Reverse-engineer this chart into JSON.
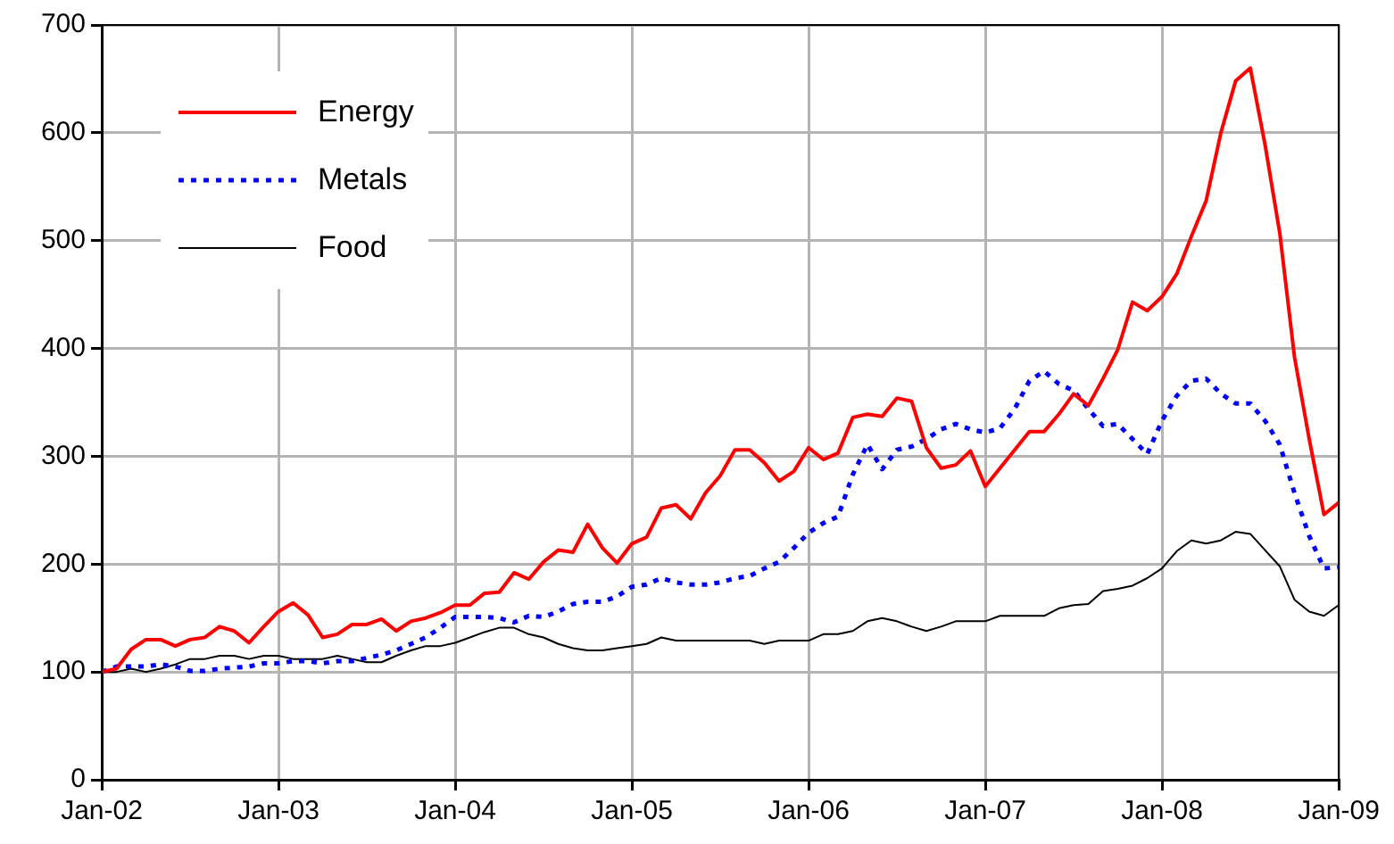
{
  "chart_data": {
    "type": "line",
    "legend": "top left",
    "grid": true,
    "marker": "none",
    "x": [
      "2002-01",
      "2002-02",
      "2002-03",
      "2002-04",
      "2002-05",
      "2002-06",
      "2002-07",
      "2002-08",
      "2002-09",
      "2002-10",
      "2002-11",
      "2002-12",
      "2003-01",
      "2003-02",
      "2003-03",
      "2003-04",
      "2003-05",
      "2003-06",
      "2003-07",
      "2003-08",
      "2003-09",
      "2003-10",
      "2003-11",
      "2003-12",
      "2004-01",
      "2004-02",
      "2004-03",
      "2004-04",
      "2004-05",
      "2004-06",
      "2004-07",
      "2004-08",
      "2004-09",
      "2004-10",
      "2004-11",
      "2004-12",
      "2005-01",
      "2005-02",
      "2005-03",
      "2005-04",
      "2005-05",
      "2005-06",
      "2005-07",
      "2005-08",
      "2005-09",
      "2005-10",
      "2005-11",
      "2005-12",
      "2006-01",
      "2006-02",
      "2006-03",
      "2006-04",
      "2006-05",
      "2006-06",
      "2006-07",
      "2006-08",
      "2006-09",
      "2006-10",
      "2006-11",
      "2006-12",
      "2007-01",
      "2007-02",
      "2007-03",
      "2007-04",
      "2007-05",
      "2007-06",
      "2007-07",
      "2007-08",
      "2007-09",
      "2007-10",
      "2007-11",
      "2007-12",
      "2008-01",
      "2008-02",
      "2008-03",
      "2008-04",
      "2008-05",
      "2008-06",
      "2008-07",
      "2008-08",
      "2008-09",
      "2008-10",
      "2008-11",
      "2008-12",
      "2009-01"
    ],
    "xlim": [
      "2002-01",
      "2009-01"
    ],
    "xticks": [
      {
        "value": "2002-01",
        "label": "Jan-02"
      },
      {
        "value": "2003-01",
        "label": "Jan-03"
      },
      {
        "value": "2004-01",
        "label": "Jan-04"
      },
      {
        "value": "2005-01",
        "label": "Jan-05"
      },
      {
        "value": "2006-01",
        "label": "Jan-06"
      },
      {
        "value": "2007-01",
        "label": "Jan-07"
      },
      {
        "value": "2008-01",
        "label": "Jan-08"
      },
      {
        "value": "2009-01",
        "label": "Jan-09"
      }
    ],
    "ylim": [
      0,
      700
    ],
    "yticks": [
      0,
      100,
      200,
      300,
      400,
      500,
      600,
      700
    ],
    "series": [
      {
        "name": "Energy",
        "color": "#ff0000",
        "line_style": "solid",
        "values": [
          100,
          103,
          121,
          130,
          130,
          124,
          130,
          132,
          142,
          138,
          127,
          142,
          156,
          164,
          153,
          132,
          135,
          144,
          144,
          149,
          138,
          147,
          150,
          155,
          162,
          162,
          173,
          174,
          192,
          186,
          202,
          213,
          211,
          237,
          215,
          201,
          219,
          225,
          252,
          255,
          242,
          266,
          282,
          306,
          306,
          294,
          277,
          286,
          308,
          297,
          303,
          336,
          339,
          337,
          354,
          351,
          308,
          289,
          292,
          305,
          272,
          289,
          306,
          323,
          323,
          339,
          358,
          347,
          372,
          399,
          443,
          435,
          448,
          469,
          504,
          537,
          600,
          648,
          660,
          589,
          507,
          392,
          316,
          246,
          257
        ]
      },
      {
        "name": "Metals",
        "color": "#0000ff",
        "line_style": "dotted",
        "values": [
          100,
          105,
          105,
          105,
          107,
          105,
          101,
          101,
          103,
          104,
          105,
          108,
          108,
          110,
          110,
          108,
          110,
          110,
          113,
          116,
          120,
          126,
          132,
          141,
          151,
          151,
          151,
          150,
          146,
          152,
          151,
          156,
          163,
          165,
          165,
          170,
          179,
          181,
          187,
          183,
          181,
          181,
          183,
          187,
          189,
          196,
          202,
          215,
          229,
          238,
          244,
          283,
          311,
          288,
          306,
          309,
          316,
          325,
          330,
          325,
          322,
          326,
          344,
          370,
          379,
          367,
          361,
          344,
          328,
          330,
          316,
          302,
          333,
          356,
          370,
          372,
          358,
          349,
          349,
          333,
          311,
          266,
          226,
          196,
          197
        ]
      },
      {
        "name": "Food",
        "color": "#000000",
        "line_style": "solid",
        "values": [
          100,
          100,
          103,
          100,
          103,
          107,
          112,
          112,
          115,
          115,
          112,
          115,
          115,
          112,
          112,
          112,
          115,
          112,
          109,
          109,
          115,
          120,
          124,
          124,
          127,
          132,
          137,
          141,
          141,
          135,
          132,
          126,
          122,
          120,
          120,
          122,
          124,
          126,
          132,
          129,
          129,
          129,
          129,
          129,
          129,
          126,
          129,
          129,
          129,
          135,
          135,
          138,
          147,
          150,
          147,
          142,
          138,
          142,
          147,
          147,
          147,
          152,
          152,
          152,
          152,
          159,
          162,
          163,
          175,
          177,
          180,
          187,
          196,
          212,
          222,
          219,
          222,
          230,
          228,
          213,
          198,
          167,
          156,
          152,
          162
        ]
      }
    ]
  }
}
